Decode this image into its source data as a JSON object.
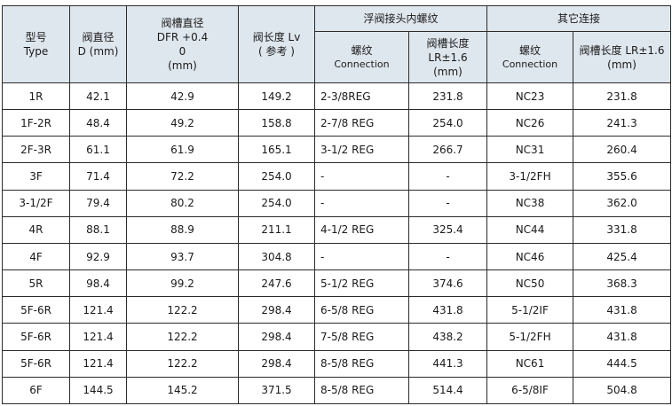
{
  "headers": {
    "type": [
      "型号",
      "Type"
    ],
    "diameter": [
      "阀直径",
      "D (mm)"
    ],
    "groove_dia": [
      "阀槽直径",
      "DFR +0.4",
      "0",
      "(mm)"
    ],
    "valve_len": [
      "阀长度 Lv",
      "( 参考 )"
    ],
    "float_group": "浮阀接头内螺纹",
    "float_conn": [
      "螺纹",
      "Connection"
    ],
    "float_len": [
      "阀槽长度",
      "LR±1.6",
      "(mm)"
    ],
    "other_group": "其它连接",
    "other_conn": [
      "螺纹",
      "Connection"
    ],
    "other_len": [
      "阀槽长度 LR±1.6",
      "(mm)"
    ]
  },
  "rows": [
    {
      "type": "1R",
      "d": "42.1",
      "dfr": "42.9",
      "lv": "149.2",
      "fconn": "2-3/8REG",
      "flen": "231.8",
      "oconn": "NC23",
      "olen": "231.8"
    },
    {
      "type": "1F-2R",
      "d": "48.4",
      "dfr": "49.2",
      "lv": "158.8",
      "fconn": "2-7/8 REG",
      "flen": "254.0",
      "oconn": "NC26",
      "olen": "241.3"
    },
    {
      "type": "2F-3R",
      "d": "61.1",
      "dfr": "61.9",
      "lv": "165.1",
      "fconn": "3-1/2 REG",
      "flen": "266.7",
      "oconn": "NC31",
      "olen": "260.4"
    },
    {
      "type": "3F",
      "d": "71.4",
      "dfr": "72.2",
      "lv": "254.0",
      "fconn": "-",
      "flen": "-",
      "oconn": "3-1/2FH",
      "olen": "355.6"
    },
    {
      "type": "3-1/2F",
      "d": "79.4",
      "dfr": "80.2",
      "lv": "254.0",
      "fconn": "-",
      "flen": "-",
      "oconn": "NC38",
      "olen": "362.0"
    },
    {
      "type": "4R",
      "d": "88.1",
      "dfr": "88.9",
      "lv": "211.1",
      "fconn": "4-1/2 REG",
      "flen": "325.4",
      "oconn": "NC44",
      "olen": "331.8"
    },
    {
      "type": "4F",
      "d": "92.9",
      "dfr": "93.7",
      "lv": "304.8",
      "fconn": "-",
      "flen": "-",
      "oconn": "NC46",
      "olen": "425.4"
    },
    {
      "type": "5R",
      "d": "98.4",
      "dfr": "99.2",
      "lv": "247.6",
      "fconn": "5-1/2 REG",
      "flen": "374.6",
      "oconn": "NC50",
      "olen": "368.3"
    },
    {
      "type": "5F-6R",
      "d": "121.4",
      "dfr": "122.2",
      "lv": "298.4",
      "fconn": "6-5/8 REG",
      "flen": "431.8",
      "oconn": "5-1/2IF",
      "olen": "431.8"
    },
    {
      "type": "5F-6R",
      "d": "121.4",
      "dfr": "122.2",
      "lv": "298.4",
      "fconn": "7-5/8 REG",
      "flen": "438.2",
      "oconn": "5-1/2FH",
      "olen": "431.8"
    },
    {
      "type": "5F-6R",
      "d": "121.4",
      "dfr": "122.2",
      "lv": "298.4",
      "fconn": "8-5/8 REG",
      "flen": "441.3",
      "oconn": "NC61",
      "olen": "444.5"
    },
    {
      "type": "6F",
      "d": "144.5",
      "dfr": "145.2",
      "lv": "371.5",
      "fconn": "8-5/8 REG",
      "flen": "514.4",
      "oconn": "6-5/8IF",
      "olen": "504.8"
    }
  ]
}
